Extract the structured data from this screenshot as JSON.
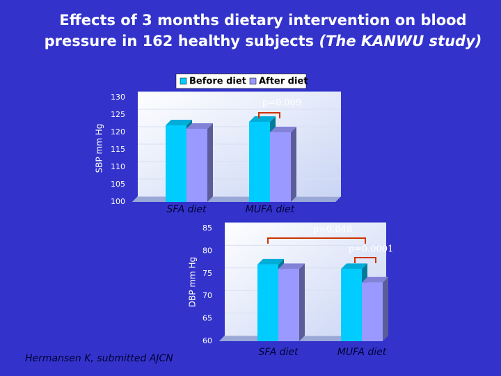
{
  "header": {
    "title": "Effects of 3 months dietary intervention on blood pressure in 162 healthy subjects",
    "emphasis": "(The KANWU study)"
  },
  "footnote": "Hermansen K, submitted AJCN",
  "chart_data": [
    {
      "type": "bar",
      "y_label": "SBP mm Hg",
      "categories": [
        "SFA diet",
        "MUFA diet"
      ],
      "series": [
        {
          "name": "Before diet",
          "color": "#00ccff",
          "values": [
            122,
            123
          ]
        },
        {
          "name": "After diet",
          "color": "#9999ff",
          "values": [
            121,
            120
          ]
        }
      ],
      "ylim": [
        100,
        130
      ],
      "yticks": [
        100,
        105,
        110,
        115,
        120,
        125,
        130
      ],
      "legend": "top",
      "annotations": [
        "p=0.009"
      ]
    },
    {
      "type": "bar",
      "y_label": "DBP mm Hg",
      "categories": [
        "SFA diet",
        "MUFA diet"
      ],
      "series": [
        {
          "color": "#00ccff",
          "values": [
            77,
            76
          ]
        },
        {
          "color": "#9999ff",
          "values": [
            76,
            73
          ]
        }
      ],
      "ylim": [
        60,
        85
      ],
      "yticks": [
        60,
        65,
        70,
        75,
        80,
        85
      ],
      "annotations": [
        "p=0.048",
        "p=0.0001"
      ]
    }
  ]
}
